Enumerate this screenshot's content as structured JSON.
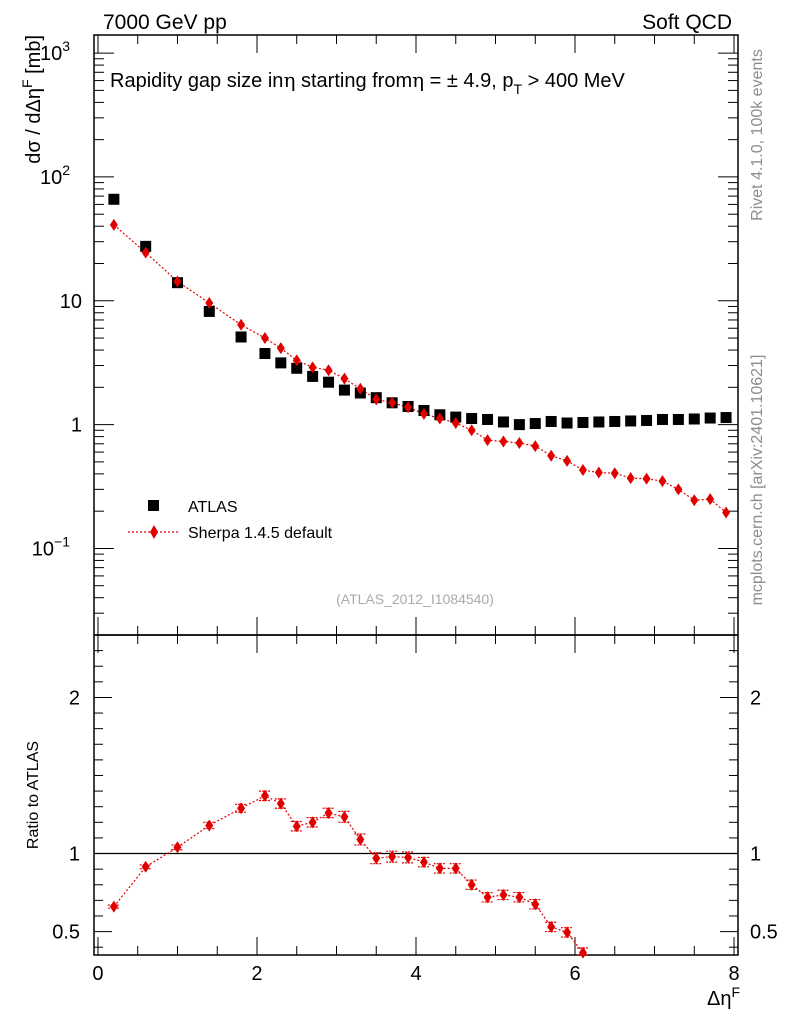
{
  "header": {
    "energy_label": "7000 GeV pp",
    "category_label": "Soft QCD"
  },
  "side_labels": {
    "rivet": "Rivet 4.1.0,  100k events",
    "source": "mcplots.cern.ch [arXiv:2401.10621]"
  },
  "chart_data": [
    {
      "type": "scatter",
      "panel": "main",
      "title": "Rapidity gap size in η starting from η = ± 4.9, p_T > 400 MeV",
      "title_parts": {
        "part1": "Rapidity gap size in",
        "eta1": "η",
        "part2": " starting from",
        "eta2": "η",
        "part3": " = ± 4.9, p",
        "sub": "T",
        "part4": " > 400 MeV"
      },
      "ylabel": "dσ / dΔη^F [mb]",
      "ylabel_parts": {
        "main": "dσ / dΔη",
        "sup": "F",
        "unit": " [mb]"
      },
      "yscale": "log",
      "ylim": [
        0.02,
        1400
      ],
      "xlim": [
        -0.05,
        8.05
      ],
      "yticks": [
        {
          "value": 0.1,
          "base": "10",
          "exp": "−1"
        },
        {
          "value": 1,
          "base": "1",
          "exp": ""
        },
        {
          "value": 10,
          "base": "10",
          "exp": ""
        },
        {
          "value": 100,
          "base": "10",
          "exp": "2"
        },
        {
          "value": 1000,
          "base": "10",
          "exp": "3"
        }
      ],
      "watermark": "(ATLAS_2012_I1084540)",
      "legend": [
        {
          "label": "ATLAS",
          "marker": "square",
          "color": "#000000"
        },
        {
          "label": "Sherpa 1.4.5 default",
          "marker": "diamond",
          "color": "#e00000"
        }
      ],
      "series": [
        {
          "name": "ATLAS",
          "marker": "square",
          "color": "#000000",
          "x": [
            0.2,
            0.6,
            1.0,
            1.4,
            1.8,
            2.1,
            2.3,
            2.5,
            2.7,
            2.9,
            3.1,
            3.3,
            3.5,
            3.7,
            3.9,
            4.1,
            4.3,
            4.5,
            4.7,
            4.9,
            5.1,
            5.3,
            5.5,
            5.7,
            5.9,
            6.1,
            6.3,
            6.5,
            6.7,
            6.9,
            7.1,
            7.3,
            7.5,
            7.7,
            7.9
          ],
          "y": [
            66,
            27.5,
            14,
            8.2,
            5.1,
            3.75,
            3.15,
            2.85,
            2.45,
            2.2,
            1.9,
            1.8,
            1.65,
            1.5,
            1.4,
            1.3,
            1.2,
            1.15,
            1.12,
            1.1,
            1.05,
            1.0,
            1.02,
            1.06,
            1.03,
            1.04,
            1.05,
            1.06,
            1.07,
            1.08,
            1.1,
            1.1,
            1.11,
            1.13,
            1.14
          ]
        },
        {
          "name": "Sherpa 1.4.5 default",
          "marker": "diamond",
          "color": "#e00000",
          "line": "dotted",
          "x": [
            0.2,
            0.6,
            1.0,
            1.4,
            1.8,
            2.1,
            2.3,
            2.5,
            2.7,
            2.9,
            3.1,
            3.3,
            3.5,
            3.7,
            3.9,
            4.1,
            4.3,
            4.5,
            4.7,
            4.9,
            5.1,
            5.3,
            5.5,
            5.7,
            5.9,
            6.1,
            6.3,
            6.5,
            6.7,
            6.9,
            7.1,
            7.3,
            7.5,
            7.7,
            7.9
          ],
          "y": [
            41,
            24.5,
            14.3,
            9.6,
            6.4,
            5.0,
            4.15,
            3.3,
            2.9,
            2.75,
            2.35,
            1.95,
            1.6,
            1.5,
            1.38,
            1.22,
            1.12,
            1.03,
            0.9,
            0.75,
            0.73,
            0.71,
            0.67,
            0.56,
            0.51,
            0.43,
            0.41,
            0.405,
            0.37,
            0.365,
            0.35,
            0.3,
            0.245,
            0.25,
            0.195
          ]
        }
      ]
    },
    {
      "type": "scatter",
      "panel": "ratio",
      "ylabel": "Ratio to ATLAS",
      "xlabel": "Δη^F",
      "xlabel_parts": {
        "main": "Δη",
        "sup": "F"
      },
      "ylim": [
        0.35,
        2.4
      ],
      "xlim": [
        -0.05,
        8.05
      ],
      "xticks": [
        0,
        2,
        4,
        6,
        8
      ],
      "yticks": [
        0.5,
        1,
        2
      ],
      "reference_line": 1,
      "series": [
        {
          "name": "Sherpa 1.4.5 default",
          "marker": "diamond",
          "color": "#e00000",
          "line": "dotted",
          "x": [
            0.2,
            0.6,
            1.0,
            1.4,
            1.8,
            2.1,
            2.3,
            2.5,
            2.7,
            2.9,
            3.1,
            3.3,
            3.5,
            3.7,
            3.9,
            4.1,
            4.3,
            4.5,
            4.7,
            4.9,
            5.1,
            5.3,
            5.5,
            5.7,
            5.9,
            6.1
          ],
          "y": [
            0.66,
            0.915,
            1.04,
            1.18,
            1.29,
            1.37,
            1.32,
            1.175,
            1.2,
            1.26,
            1.235,
            1.09,
            0.97,
            0.98,
            0.975,
            0.945,
            0.905,
            0.905,
            0.8,
            0.72,
            0.735,
            0.72,
            0.675,
            0.53,
            0.495,
            0.365
          ],
          "err": [
            0.01,
            0.012,
            0.015,
            0.02,
            0.025,
            0.03,
            0.03,
            0.03,
            0.03,
            0.03,
            0.035,
            0.035,
            0.035,
            0.035,
            0.035,
            0.03,
            0.03,
            0.03,
            0.03,
            0.03,
            0.03,
            0.03,
            0.03,
            0.03,
            0.03,
            0.03
          ]
        }
      ]
    }
  ]
}
